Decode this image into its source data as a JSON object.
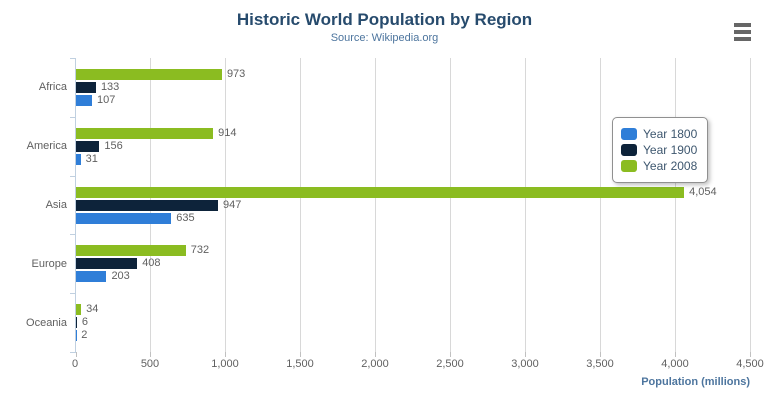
{
  "chart_data": {
    "type": "bar",
    "title": "Historic World Population by Region",
    "subtitle": "Source: Wikipedia.org",
    "categories": [
      "Africa",
      "America",
      "Asia",
      "Europe",
      "Oceania"
    ],
    "series": [
      {
        "name": "Year 1800",
        "color": "#2f7ed8",
        "values": [
          107,
          31,
          635,
          203,
          2
        ]
      },
      {
        "name": "Year 1900",
        "color": "#0d233a",
        "values": [
          133,
          156,
          947,
          408,
          6
        ]
      },
      {
        "name": "Year 2008",
        "color": "#8bbc21",
        "values": [
          973,
          914,
          4054,
          732,
          34
        ]
      }
    ],
    "bar_display_order_top_to_bottom": [
      "Year 2008",
      "Year 1900",
      "Year 1800"
    ],
    "xlabel": "Population (millions)",
    "xlim": [
      0,
      4500
    ],
    "xticks": [
      0,
      500,
      1000,
      1500,
      2000,
      2500,
      3000,
      3500,
      4000,
      4500
    ],
    "grid": true,
    "legend_position": "right",
    "data_labels": true
  },
  "colors": {
    "title": "#274b6d",
    "subtitle": "#4d759e",
    "axis_line": "#C0D0E0",
    "gridline": "#d8d8d8",
    "tick_label": "#606060",
    "legend_border": "#909090"
  },
  "icons": {
    "export_menu": "hamburger-icon"
  }
}
